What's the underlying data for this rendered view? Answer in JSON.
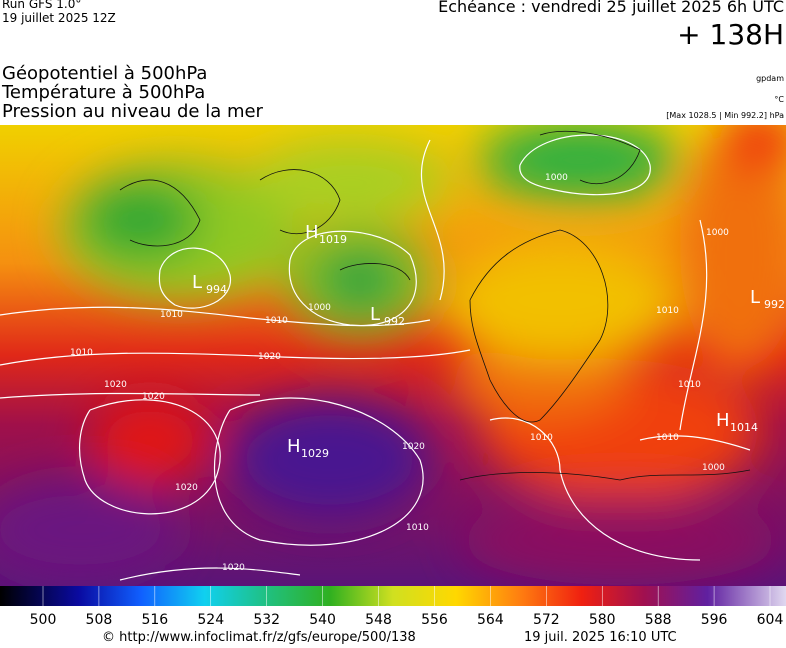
{
  "header": {
    "run": "Run GFS 1.0°",
    "run_date": "19 juillet 2025 12Z",
    "forecast": "Échéance : vendredi 25 juillet 2025 6h UTC",
    "lead": "+ 138H"
  },
  "titles": [
    "Géopotentiel à 500hPa",
    "Température à 500hPa",
    "Pression au niveau de la mer"
  ],
  "units": [
    "gpdam",
    "°C",
    "[Max 1028.5 | Min 992.2] hPa"
  ],
  "centers": [
    {
      "letter": "L",
      "value": "994"
    },
    {
      "letter": "H",
      "value": "1019"
    },
    {
      "letter": "L",
      "value": "992"
    },
    {
      "letter": "H",
      "value": "1029"
    },
    {
      "letter": "L",
      "value": "992"
    },
    {
      "letter": "H",
      "value": "1014"
    }
  ],
  "isobar_labels": [
    "1010",
    "1010",
    "1010",
    "1020",
    "1020",
    "1020",
    "1020",
    "1020",
    "1020",
    "1000",
    "1000",
    "1000",
    "1010",
    "1010",
    "1010",
    "1000",
    "1010",
    "1010"
  ],
  "colorbar": {
    "ticks": [
      500,
      508,
      516,
      524,
      532,
      540,
      548,
      556,
      564,
      572,
      580,
      588,
      596,
      604
    ]
  },
  "footer": {
    "url": "© http://www.infoclimat.fr/z/gfs/europe/500/138",
    "timestamp": "19 juil. 2025 16:10 UTC"
  }
}
